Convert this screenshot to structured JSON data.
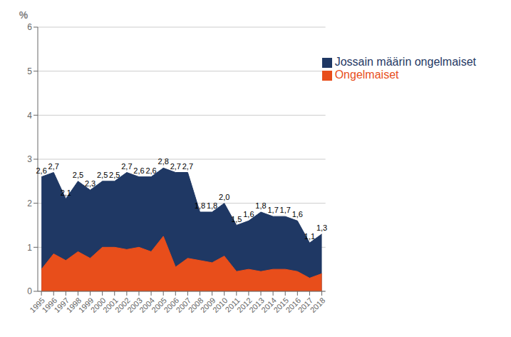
{
  "chart_data": {
    "type": "area",
    "x": [
      1995,
      1996,
      1997,
      1998,
      1999,
      2000,
      2001,
      2002,
      2003,
      2004,
      2005,
      2006,
      2007,
      2008,
      2009,
      2010,
      2011,
      2012,
      2013,
      2014,
      2015,
      2016,
      2017,
      2018
    ],
    "series": [
      {
        "name": "Jossain määrin ongelmaiset",
        "color": "#1f3864",
        "values": [
          2.6,
          2.7,
          2.1,
          2.5,
          2.3,
          2.5,
          2.5,
          2.7,
          2.6,
          2.6,
          2.8,
          2.7,
          2.7,
          1.8,
          1.8,
          2.0,
          1.5,
          1.6,
          1.8,
          1.7,
          1.7,
          1.6,
          1.1,
          1.3
        ],
        "value_labels": [
          "2,6",
          "2,7",
          "2,1",
          "2,5",
          "2,3",
          "2,5",
          "2,5",
          "2,7",
          "2,6",
          "2,6",
          "2,8",
          "2,7",
          "2,7",
          "1,8",
          "1,8",
          "2,0",
          "1,5",
          "1,6",
          "1,8",
          "1,7",
          "1,7",
          "1,6",
          "1,1",
          "1,3"
        ]
      },
      {
        "name": "Ongelmaiset",
        "color": "#e84e1b",
        "values": [
          0.5,
          0.85,
          0.7,
          0.9,
          0.75,
          1.0,
          1.0,
          0.95,
          1.0,
          0.9,
          1.25,
          0.55,
          0.75,
          0.7,
          0.65,
          0.8,
          0.45,
          0.5,
          0.45,
          0.5,
          0.5,
          0.45,
          0.3,
          0.4
        ]
      }
    ],
    "ylabel": "%",
    "xlim": [
      1994.7,
      2018.3
    ],
    "xticks": [
      1995,
      1996,
      1997,
      1998,
      1999,
      2000,
      2001,
      2002,
      2003,
      2004,
      2005,
      2006,
      2007,
      2008,
      2009,
      2010,
      2011,
      2012,
      2013,
      2014,
      2015,
      2016,
      2017,
      2018
    ],
    "ylim": [
      0,
      6
    ],
    "yticks": [
      0,
      1,
      2,
      3,
      4,
      5,
      6
    ],
    "grid": true,
    "legend": "upper right"
  }
}
